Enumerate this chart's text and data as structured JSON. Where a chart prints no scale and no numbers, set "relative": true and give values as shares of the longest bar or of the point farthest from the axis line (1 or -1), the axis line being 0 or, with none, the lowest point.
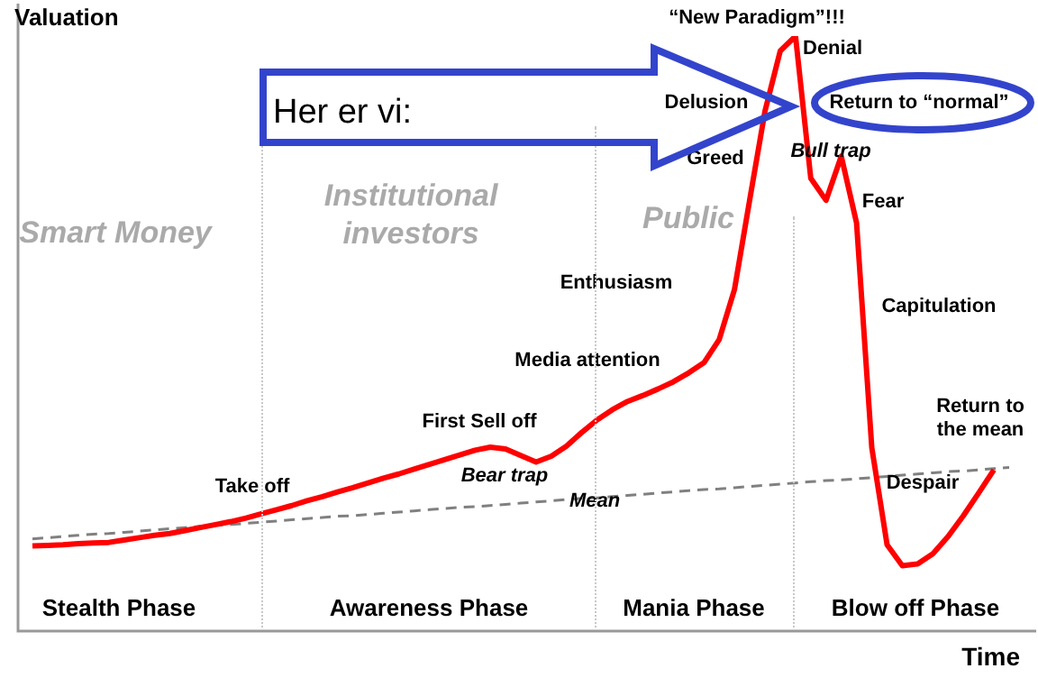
{
  "chart_data": {
    "type": "line",
    "xlabel": "Time",
    "ylabel": "Valuation",
    "relative": true,
    "tick_labels": false,
    "legend": false,
    "marker": "none",
    "categories": [
      null,
      null,
      null,
      null,
      null,
      null,
      null,
      null,
      null,
      null,
      null,
      null,
      null,
      null,
      null,
      null,
      null,
      null,
      null,
      null,
      null,
      null,
      null,
      null,
      null,
      null,
      null,
      null,
      null,
      null,
      null,
      null,
      null,
      null,
      null,
      null,
      null,
      null,
      null,
      null,
      null,
      null,
      null,
      null,
      null,
      null,
      null,
      null,
      null,
      null,
      null,
      null,
      null,
      null,
      null,
      null,
      null,
      null,
      null,
      null,
      null,
      null,
      null,
      null,
      null
    ],
    "series": [
      {
        "color": "#ff0000",
        "line_style": "solid",
        "values": [
          0.143,
          0.144,
          0.145,
          0.147,
          0.148,
          0.149,
          0.153,
          0.157,
          0.161,
          0.164,
          0.169,
          0.174,
          0.179,
          0.184,
          0.19,
          0.197,
          0.204,
          0.211,
          0.219,
          0.226,
          0.234,
          0.241,
          0.249,
          0.257,
          0.264,
          0.272,
          0.28,
          0.288,
          0.296,
          0.304,
          0.309,
          0.306,
          0.295,
          0.284,
          0.294,
          0.311,
          0.334,
          0.355,
          0.372,
          0.386,
          0.396,
          0.407,
          0.419,
          0.434,
          0.451,
          0.49,
          0.574,
          0.725,
          0.874,
          0.975,
          1,
          0.761,
          0.724,
          0.798,
          0.686,
          0.308,
          0.145,
          0.11,
          0.113,
          0.13,
          0.159,
          0.194,
          0.232,
          0.271,
          null
        ]
      },
      {
        "color": "#808080",
        "line_style": "dashed",
        "values": [
          0.155,
          0.157,
          0.159,
          0.161,
          0.163,
          0.164,
          0.166,
          0.168,
          0.17,
          0.172,
          0.174,
          0.176,
          0.178,
          0.179,
          0.181,
          0.183,
          0.185,
          0.187,
          0.189,
          0.191,
          0.193,
          0.194,
          0.196,
          0.198,
          0.2,
          0.202,
          0.204,
          0.206,
          0.208,
          0.209,
          0.211,
          0.213,
          0.215,
          0.217,
          0.219,
          0.221,
          0.223,
          0.224,
          0.226,
          0.228,
          0.23,
          0.232,
          0.234,
          0.236,
          0.238,
          0.239,
          0.241,
          0.243,
          0.245,
          0.247,
          0.249,
          0.251,
          0.253,
          0.254,
          0.256,
          0.258,
          0.26,
          0.262,
          0.264,
          0.266,
          0.268,
          0.269,
          0.271,
          0.273,
          0.275
        ]
      }
    ],
    "annotations": [
      "Smart Money",
      "Institutional\ninvestors",
      "Public",
      "Take off",
      "First Sell off",
      "Bear trap",
      "Mean",
      "Media attention",
      "Enthusiasm",
      "Greed",
      "Delusion",
      "“New Paradigm”!!!",
      "Denial",
      "Return to “normal”",
      "Bull trap",
      "Fear",
      "Capitulation",
      "Return to\nthe mean",
      "Despair",
      "Her er vi:",
      "Stealth Phase",
      "Awareness Phase",
      "Mania Phase",
      "Blow off Phase"
    ]
  }
}
